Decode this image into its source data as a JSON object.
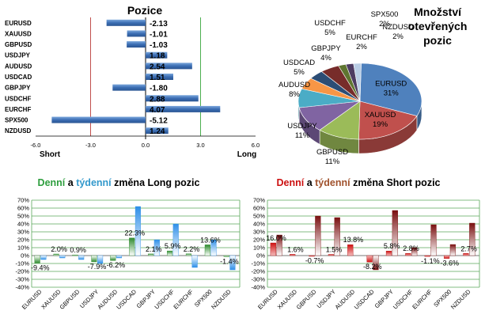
{
  "chart_data": [
    {
      "type": "bar",
      "orientation": "horizontal",
      "title": "Pozice",
      "categories": [
        "EURUSD",
        "XAUUSD",
        "GBPUSD",
        "USDJPY",
        "AUDUSD",
        "USDCAD",
        "GBPJPY",
        "USDCHF",
        "EURCHF",
        "SPX500",
        "NZDUSD"
      ],
      "values": [
        -2.13,
        -1.01,
        -1.03,
        1.18,
        2.54,
        1.51,
        -1.8,
        2.88,
        4.07,
        -5.12,
        1.24
      ],
      "value_labels": [
        "-2.13",
        "-1.01",
        "-1.03",
        "1.18",
        "2.54",
        "1.51",
        "-1.80",
        "2.88",
        "4.07",
        "-5.12",
        "1.24"
      ],
      "xlim": [
        -6.0,
        6.0
      ],
      "xticks": [
        "-6.0",
        "-3.0",
        "0.0",
        "3.0",
        "6.0"
      ],
      "left_label": "Short",
      "right_label": "Long",
      "colors": {
        "bar": "#4a7ebb",
        "short_line": "#c0504d",
        "long_line": "#4caf50"
      }
    },
    {
      "type": "pie",
      "title": "Množství otevřených pozic",
      "title_lines": [
        "Množství",
        "otevřených",
        "pozic"
      ],
      "slices": [
        {
          "label": "EURUSD",
          "pct": "31%",
          "value": 31,
          "color": "#4f81bd"
        },
        {
          "label": "XAUUSD",
          "pct": "19%",
          "value": 19,
          "color": "#c0504d"
        },
        {
          "label": "GBPUSD",
          "pct": "11%",
          "value": 11,
          "color": "#9bbb59"
        },
        {
          "label": "USDJPY",
          "pct": "11%",
          "value": 11,
          "color": "#8064a2"
        },
        {
          "label": "AUDUSD",
          "pct": "8%",
          "value": 8,
          "color": "#4bacc6"
        },
        {
          "label": "USDCAD",
          "pct": "5%",
          "value": 5,
          "color": "#f79646"
        },
        {
          "label": "GBPJPY",
          "pct": "4%",
          "value": 4,
          "color": "#2c4d75"
        },
        {
          "label": "USDCHF",
          "pct": "5%",
          "value": 5,
          "color": "#772c2a"
        },
        {
          "label": "EURCHF",
          "pct": "2%",
          "value": 2,
          "color": "#5f7530"
        },
        {
          "label": "SPX500",
          "pct": "2%",
          "value": 2,
          "color": "#4d3b62"
        },
        {
          "label": "NZDUSD",
          "pct": "2%",
          "value": 2,
          "color": "#b9cde5"
        }
      ]
    },
    {
      "type": "bar",
      "title": "Denní a týdenní změna Long pozic",
      "title_parts": [
        {
          "text": "Denní",
          "color": "#2e9e3e"
        },
        {
          "text": " a ",
          "color": "#000000"
        },
        {
          "text": "týdenní",
          "color": "#3399cc"
        },
        {
          "text": " změna Long pozic",
          "color": "#000000"
        }
      ],
      "categories": [
        "EURUSD",
        "XAUUSD",
        "GBPUSD",
        "USDJPY",
        "AUDUSD",
        "USDCAD",
        "GBPJPY",
        "USDCHF",
        "EURCHF",
        "SPX500",
        "NZDUSD"
      ],
      "series": [
        {
          "name": "Denní",
          "color": "#3a9a3a",
          "values": [
            -9.4,
            2.0,
            0.9,
            -7.9,
            -6.2,
            22.3,
            2.1,
            5.9,
            2.2,
            13.6,
            -1.4
          ]
        },
        {
          "name": "Týdenní",
          "color": "#3399ee",
          "values": [
            -5,
            -3,
            -5,
            -10,
            -3,
            62,
            20,
            40,
            -15,
            20,
            -18
          ]
        }
      ],
      "data_labels": [
        "-9.4%",
        "2.0%",
        "0.9%",
        "-7.9%",
        "-6.2%",
        "22.3%",
        "2.1%",
        "5.9%",
        "2.2%",
        "13.6%",
        "-1.4%"
      ],
      "ylim": [
        -40,
        70
      ],
      "yticks": [
        "70%",
        "60%",
        "50%",
        "40%",
        "30%",
        "20%",
        "10%",
        "0%",
        "-10%",
        "-20%",
        "-30%",
        "-40%"
      ]
    },
    {
      "type": "bar",
      "title": "Denní a týdenní změna Short pozic",
      "title_parts": [
        {
          "text": "Denní",
          "color": "#cc1111"
        },
        {
          "text": " a ",
          "color": "#000000"
        },
        {
          "text": "týdenní",
          "color": "#a0522d"
        },
        {
          "text": " změna Short pozic",
          "color": "#000000"
        }
      ],
      "categories": [
        "EURUSD",
        "XAUUSD",
        "GBPUSD",
        "USDJPY",
        "AUDUSD",
        "USDCAD",
        "GBPJPY",
        "USDCHF",
        "EURCHF",
        "SPX500",
        "NZDUSD"
      ],
      "series": [
        {
          "name": "Denní",
          "color": "#cc1111",
          "values": [
            16.0,
            1.6,
            -0.7,
            1.5,
            13.8,
            -8.2,
            5.8,
            2.8,
            -1.1,
            -3.6,
            2.7
          ]
        },
        {
          "name": "Týdenní",
          "color": "#8b1a1a",
          "values": [
            26,
            0,
            50,
            48,
            0,
            -18,
            57,
            10,
            39,
            14,
            41
          ]
        }
      ],
      "data_labels": [
        "16.0%",
        "1.6%",
        "-0.7%",
        "1.5%",
        "13.8%",
        "-8.2%",
        "5.8%",
        "2.8%",
        "-1.1%",
        "-3.6%",
        "2.7%"
      ],
      "ylim": [
        -40,
        70
      ],
      "yticks": [
        "70%",
        "60%",
        "50%",
        "40%",
        "30%",
        "20%",
        "10%",
        "0%",
        "-10%",
        "-20%",
        "-30%",
        "-40%"
      ]
    }
  ]
}
